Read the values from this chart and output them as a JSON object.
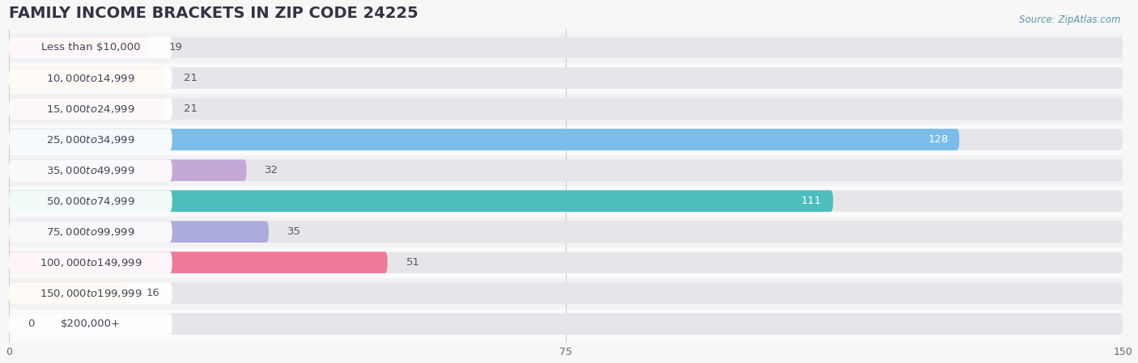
{
  "title": "FAMILY INCOME BRACKETS IN ZIP CODE 24225",
  "source": "Source: ZipAtlas.com",
  "categories": [
    "Less than $10,000",
    "$10,000 to $14,999",
    "$15,000 to $24,999",
    "$25,000 to $34,999",
    "$35,000 to $49,999",
    "$50,000 to $74,999",
    "$75,000 to $99,999",
    "$100,000 to $149,999",
    "$150,000 to $199,999",
    "$200,000+"
  ],
  "values": [
    19,
    21,
    21,
    128,
    32,
    111,
    35,
    51,
    16,
    0
  ],
  "colors": [
    "#F48FAA",
    "#F9C98A",
    "#F4A0A0",
    "#7BBCE8",
    "#C4A8D8",
    "#4DBDBD",
    "#ABABDC",
    "#F07898",
    "#F9C98A",
    "#F4B8A8"
  ],
  "xlim": [
    0,
    150
  ],
  "xticks": [
    0,
    75,
    150
  ],
  "bg_color": "#f7f7f7",
  "bar_bg_color": "#e6e6ea",
  "row_bg_even": "#f0f0f0",
  "row_bg_odd": "#fafafa",
  "title_fontsize": 14,
  "value_fontsize": 9.5,
  "label_fontsize": 9.5,
  "label_color": "#444455"
}
